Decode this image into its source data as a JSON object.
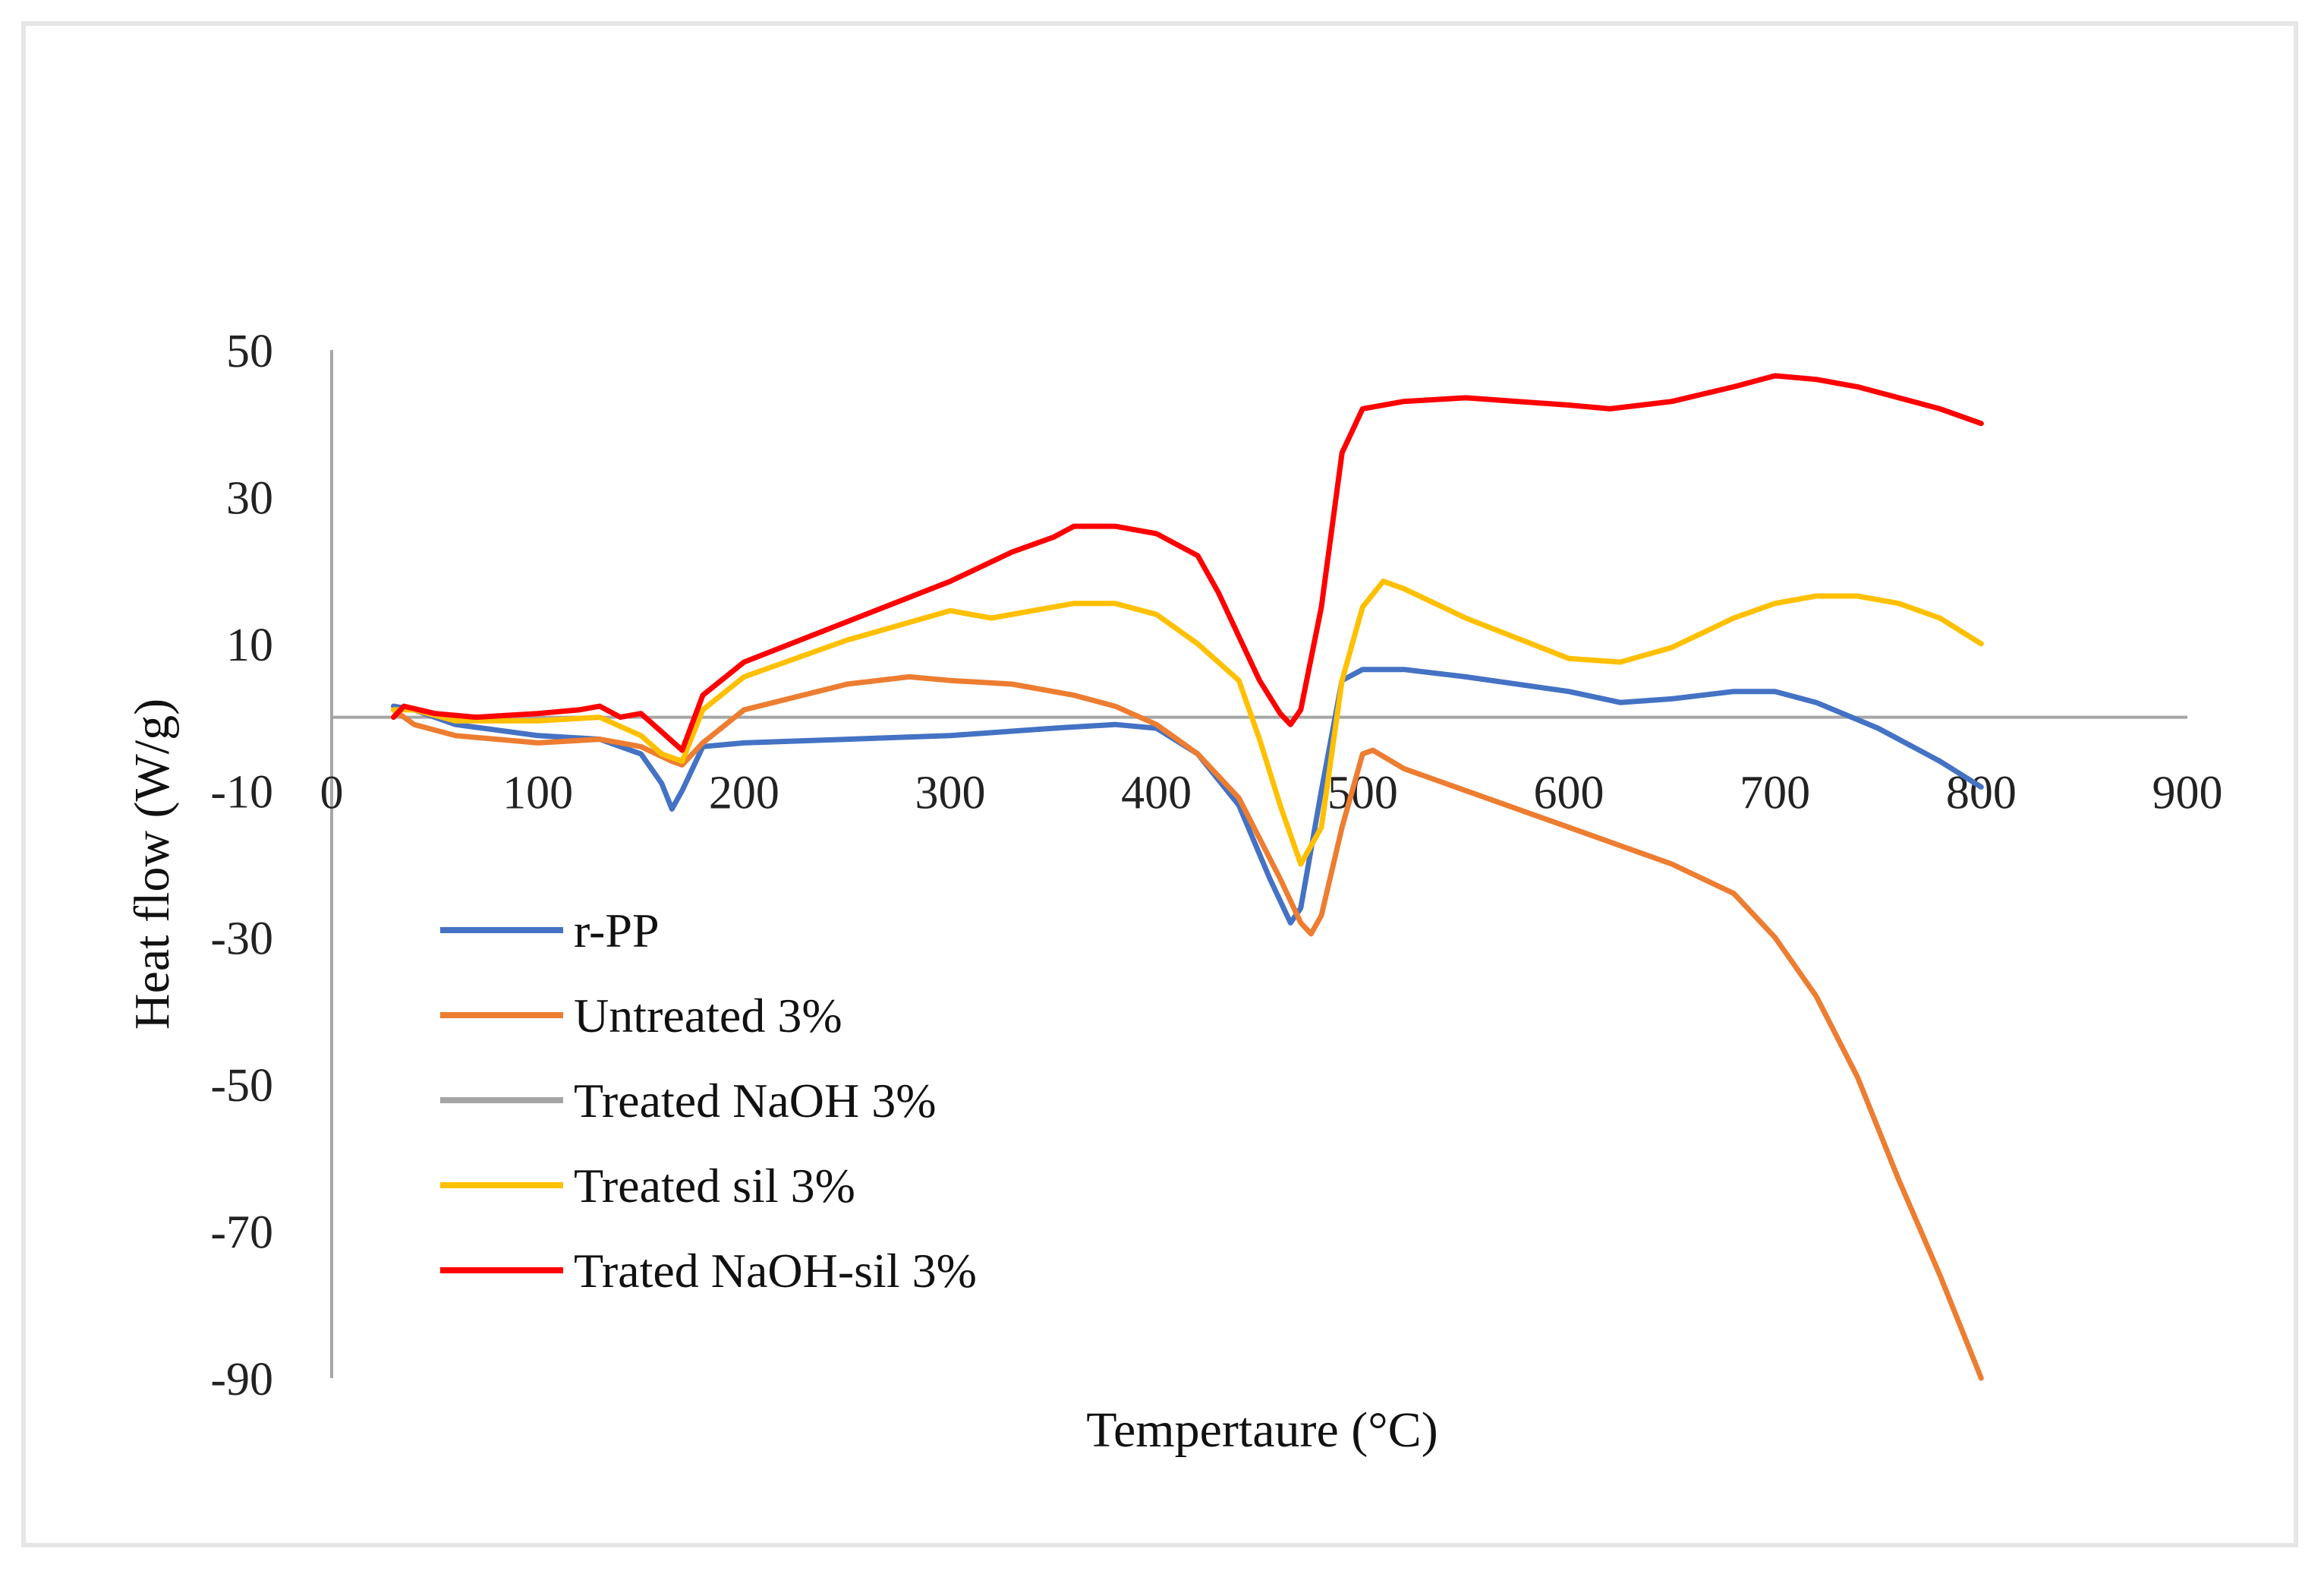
{
  "chart_data": {
    "type": "line",
    "title": "",
    "xlabel": "Tempertaure (°C)",
    "ylabel": "Heat flow (W/g)",
    "xlim": [
      0,
      900
    ],
    "ylim": [
      -90,
      50
    ],
    "x_ticks": [
      "0",
      "100",
      "200",
      "300",
      "400",
      "500",
      "600",
      "700",
      "800",
      "900"
    ],
    "y_ticks": [
      "50",
      "30",
      "10",
      "-10",
      "-30",
      "-50",
      "-70",
      "-90"
    ],
    "grid": false,
    "legend_position": "lower-left",
    "series": [
      {
        "name": "r-PP",
        "color": "#4472C4",
        "x": [
          30,
          40,
          60,
          100,
          130,
          150,
          160,
          165,
          170,
          180,
          200,
          250,
          300,
          350,
          380,
          400,
          420,
          440,
          455,
          465,
          470,
          480,
          490,
          500,
          520,
          550,
          600,
          625,
          650,
          680,
          700,
          720,
          750,
          780,
          800
        ],
        "y": [
          1.5,
          1.0,
          -1.0,
          -2.5,
          -3.0,
          -5.0,
          -9.0,
          -12.5,
          -10.0,
          -4.0,
          -3.5,
          -3.0,
          -2.5,
          -1.5,
          -1.0,
          -1.5,
          -5.0,
          -12.0,
          -22.0,
          -28.0,
          -26.0,
          -10.0,
          5.0,
          6.5,
          6.5,
          5.5,
          3.5,
          2.0,
          2.5,
          3.5,
          3.5,
          2.0,
          -1.5,
          -6.0,
          -9.5
        ]
      },
      {
        "name": "Untreated 3%",
        "color": "#ED7D31",
        "x": [
          30,
          40,
          60,
          100,
          130,
          150,
          165,
          170,
          180,
          200,
          250,
          280,
          300,
          330,
          360,
          380,
          400,
          420,
          440,
          460,
          470,
          475,
          480,
          490,
          500,
          505,
          520,
          550,
          600,
          625,
          650,
          680,
          700,
          720,
          740,
          760,
          780,
          800
        ],
        "y": [
          1.0,
          -1.0,
          -2.5,
          -3.5,
          -3.0,
          -4.0,
          -6.0,
          -6.5,
          -3.5,
          1.0,
          4.5,
          5.5,
          5.0,
          4.5,
          3.0,
          1.5,
          -1.0,
          -5.0,
          -11.0,
          -22.0,
          -28.0,
          -29.5,
          -27.0,
          -15.0,
          -5.0,
          -4.5,
          -7.0,
          -10.0,
          -15.0,
          -17.5,
          -20.0,
          -24.0,
          -30.0,
          -38.0,
          -49.0,
          -63.0,
          -76.0,
          -90.0
        ]
      },
      {
        "name": "Treated NaOH 3%",
        "color": "#A5A5A5",
        "x": [],
        "y": []
      },
      {
        "name": "Treated sil 3%",
        "color": "#FFC000",
        "x": [
          30,
          40,
          60,
          100,
          130,
          150,
          160,
          170,
          180,
          200,
          250,
          300,
          320,
          340,
          360,
          380,
          400,
          420,
          440,
          450,
          460,
          470,
          480,
          490,
          500,
          510,
          520,
          550,
          600,
          625,
          650,
          680,
          700,
          720,
          740,
          760,
          780,
          800
        ],
        "y": [
          1.0,
          1.0,
          -0.5,
          -0.5,
          0.0,
          -2.5,
          -5.0,
          -6.0,
          1.0,
          5.5,
          10.5,
          14.5,
          13.5,
          14.5,
          15.5,
          15.5,
          14.0,
          10.0,
          5.0,
          -3.0,
          -12.0,
          -20.0,
          -15.0,
          5.0,
          15.0,
          18.5,
          17.5,
          13.5,
          8.0,
          7.5,
          9.5,
          13.5,
          15.5,
          16.5,
          16.5,
          15.5,
          13.5,
          10.0
        ]
      },
      {
        "name": "Trated NaOH-sil 3%",
        "color": "#FF0000",
        "x": [
          30,
          35,
          50,
          70,
          100,
          120,
          130,
          140,
          150,
          160,
          170,
          180,
          200,
          250,
          300,
          330,
          350,
          360,
          380,
          400,
          420,
          430,
          440,
          450,
          460,
          465,
          470,
          480,
          490,
          500,
          520,
          550,
          600,
          620,
          650,
          680,
          700,
          720,
          740,
          760,
          780,
          800
        ],
        "y": [
          0.0,
          1.5,
          0.5,
          0.0,
          0.5,
          1.0,
          1.5,
          0.0,
          0.5,
          -2.0,
          -4.5,
          3.0,
          7.5,
          13.0,
          18.5,
          22.5,
          24.5,
          26.0,
          26.0,
          25.0,
          22.0,
          17.0,
          11.0,
          5.0,
          0.5,
          -1.0,
          1.0,
          15.0,
          36.0,
          42.0,
          43.0,
          43.5,
          42.5,
          42.0,
          43.0,
          45.0,
          46.5,
          46.0,
          45.0,
          43.5,
          42.0,
          40.0
        ]
      }
    ]
  }
}
